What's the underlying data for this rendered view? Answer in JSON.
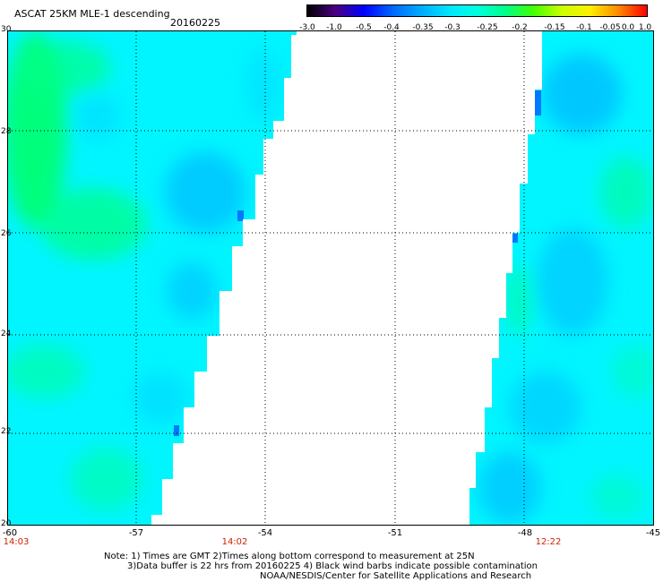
{
  "header": {
    "title": "ASCAT 25KM MLE-1 descending",
    "date": "20160225"
  },
  "colorbar": {
    "labels": [
      "-3.0",
      "-1.0",
      "-0.5",
      "-0.4",
      "-0.35",
      "-0.3",
      "-0.25",
      "-0.2",
      "-0.15",
      "-0.1",
      "-0.05",
      "0.0",
      "1.0"
    ],
    "colors": [
      "#000000",
      "#4b0082",
      "#0000ff",
      "#0066ff",
      "#00aaff",
      "#00e5ff",
      "#00ffe0",
      "#00ff88",
      "#44ff00",
      "#ccff00",
      "#ffee00",
      "#ff8800",
      "#ff0000"
    ]
  },
  "map": {
    "lat_labels": [
      "30",
      "28",
      "26",
      "24",
      "22",
      "20"
    ],
    "lon_labels": [
      "-60",
      "-57",
      "-54",
      "-51",
      "-48",
      "-45"
    ],
    "time_labels": [
      "14:03",
      "14:02",
      "12:22"
    ],
    "data_colors": {
      "cyan": "#00f5ff",
      "green": "#00ff66",
      "blue": "#00aaff"
    }
  },
  "notes": {
    "line1": "Note: 1) Times are GMT 2)Times along bottom correspond to measurement at 25N",
    "line2": "3)Data buffer is 22 hrs from 20160225 4) Black wind barbs indicate possible contamination",
    "line3": "NOAA/NESDIS/Center for Satellite Applications and Research"
  }
}
